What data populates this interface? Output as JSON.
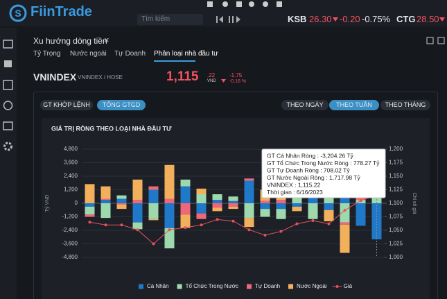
{
  "header": {
    "logo": "FiinTrade",
    "search_placeholder": "Tìm kiếm",
    "ticker": [
      {
        "symbol": "KSB",
        "price": "26.30",
        "change": "-0.20",
        "pct": "-0.75%"
      },
      {
        "symbol": "CTG",
        "price": "28.50"
      }
    ]
  },
  "panel": {
    "title": "Xu hướng dòng tiền",
    "tabs": [
      "Tỷ Trọng",
      "Nước ngoài",
      "Tự Doanh",
      "Phân loại nhà đầu tư"
    ],
    "index": {
      "name": "VNINDEX",
      "exchange": "VNINDEX / HOSE",
      "price": "1,115",
      "price_decimal": ".22",
      "currency": "VND",
      "change": "-1.75",
      "pct": "-0.16 %"
    },
    "value_buttons": [
      "GT KHỚP LỆNH",
      "TỔNG GTGD"
    ],
    "period_buttons": [
      "THEO NGÀY",
      "THEO TUẦN",
      "THEO THÁNG"
    ]
  },
  "chart_data": {
    "type": "bar",
    "title": "GIÁ TRỊ RÒNG THEO LOẠI NHÀ ĐẦU TƯ",
    "y_label": "Tỷ VND",
    "y2_label": "Chỉ số giá",
    "categories": [
      null,
      null,
      null,
      null,
      null,
      null,
      null,
      null,
      null,
      null,
      null,
      null,
      null,
      null,
      null,
      null,
      null,
      null,
      null
    ],
    "stacked": true,
    "series": [
      {
        "name": "Cá Nhân",
        "color": "#1f78c8",
        "values": [
          -300,
          300,
          400,
          -1700,
          1200,
          -2200,
          1500,
          -900,
          300,
          200,
          2000,
          -500,
          -500,
          -300,
          800,
          -600,
          1700,
          -2000,
          -3204.26
        ]
      },
      {
        "name": "Tổ Chức Trong Nước",
        "color": "#9ed9ad",
        "values": [
          -700,
          -1300,
          300,
          -600,
          -1400,
          -1800,
          600,
          800,
          500,
          400,
          -1300,
          -700,
          -900,
          600,
          -1400,
          1200,
          -1700,
          300,
          778.27
        ]
      },
      {
        "name": "Tự Doanh",
        "color": "#f0677a",
        "values": [
          -200,
          100,
          -100,
          300,
          300,
          400,
          -1000,
          -500,
          -400,
          -300,
          200,
          200,
          300,
          200,
          300,
          400,
          -200,
          200,
          708.02
        ]
      },
      {
        "name": "Nước Ngoài",
        "color": "#f3b05c",
        "values": [
          1700,
          1100,
          -400,
          1800,
          -100,
          3000,
          -1200,
          500,
          -300,
          -200,
          -800,
          1000,
          1200,
          -400,
          300,
          -1000,
          -2500,
          1500,
          1717.98
        ]
      },
      {
        "name": "Giá",
        "color": "#e8525c",
        "type": "line",
        "axis": "y2",
        "values": [
          1065,
          1060,
          1060,
          1051,
          1025,
          1051,
          1055,
          1060,
          1070,
          1067,
          1051,
          1041,
          1048,
          1062,
          1068,
          1062,
          1087,
          1105,
          1115.22
        ]
      }
    ],
    "ylim": [
      -4800,
      4800
    ],
    "yticks": [
      {
        "value": 4800,
        "label": "4,800"
      },
      {
        "value": 3600,
        "label": "3,600"
      },
      {
        "value": 2400,
        "label": "2,400"
      },
      {
        "value": 1200,
        "label": "1,200"
      },
      0,
      {
        "value": -1200,
        "label": "-1,200"
      },
      {
        "value": -2400,
        "label": "-2,400"
      },
      {
        "value": -3600,
        "label": "-3,600"
      },
      {
        "value": -4800,
        "label": "-4,800"
      }
    ],
    "y2lim": [
      1000,
      1200
    ],
    "y2ticks": [
      {
        "value": 1200,
        "label": "1,200"
      },
      {
        "value": 1175,
        "label": "1,175"
      },
      {
        "value": 1150,
        "label": "1,150"
      },
      {
        "value": 1125,
        "label": "1,125"
      },
      {
        "value": 1100,
        "label": "1,100"
      },
      {
        "value": 1075,
        "label": "1,075"
      },
      {
        "value": 1050,
        "label": "1,050"
      },
      {
        "value": 1025,
        "label": "1,025"
      },
      {
        "value": 1000,
        "label": "1,000"
      }
    ],
    "grid": true,
    "legend": "bottom",
    "tooltip": [
      "GT Cá Nhân Ròng : -3,204.26 Tỷ",
      "GT Tổ Chức Trong Nước Ròng : 778.27 Tỷ",
      "GT Tự Doanh Ròng : 708.02 Tỷ",
      "GT Nước Ngoài Ròng : 1,717.98 Tỷ",
      "VNINDEX : 1,115.22",
      "Thời gian : 6/16/2023"
    ]
  }
}
